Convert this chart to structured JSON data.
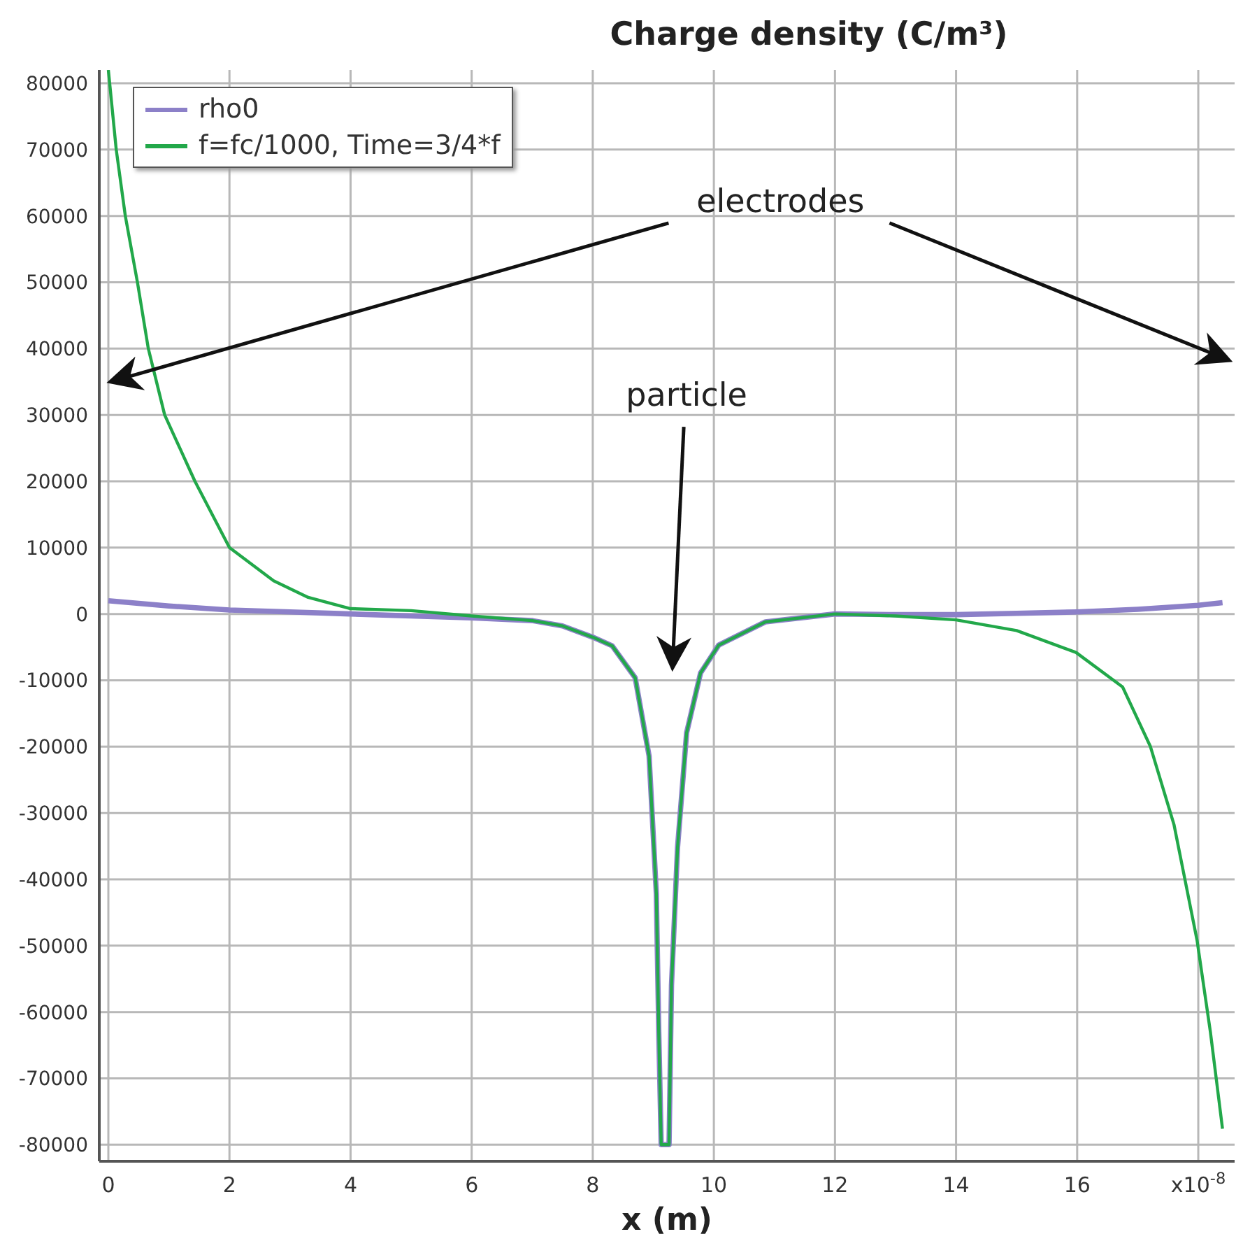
{
  "chart_data": {
    "type": "line",
    "title": "Charge  density (C/m³)",
    "xlabel": "x (m)",
    "annotations": [
      "electrodes",
      "particle"
    ],
    "xlim": [
      -0.15,
      18.6
    ],
    "xticks": [
      0,
      2,
      4,
      6,
      8,
      10,
      12,
      14,
      16,
      {
        "value": 18,
        "label": "x10$^{-8}$"
      }
    ],
    "ylim": [
      -82500,
      82000
    ],
    "yticks": [
      -80000,
      -70000,
      -60000,
      -50000,
      -40000,
      -30000,
      -20000,
      -10000,
      0,
      10000,
      20000,
      30000,
      40000,
      50000,
      60000,
      70000,
      80000
    ],
    "grid": true,
    "legend": "top left",
    "marker": "none",
    "line_style": "solid",
    "series": [
      {
        "name": "rho0",
        "color": "#8c80c8",
        "x": [
          0,
          1,
          2,
          3,
          4,
          5,
          6,
          7,
          7.5,
          8,
          8.32,
          8.7,
          8.93,
          9.05,
          9.09,
          9.13,
          9.26,
          9.3,
          9.4,
          9.55,
          9.78,
          10.08,
          10.85,
          12,
          13,
          14,
          15,
          16,
          17,
          18,
          18.4
        ],
        "values": [
          2000,
          1200,
          600,
          300,
          0,
          -300,
          -600,
          -1000,
          -1800,
          -3500,
          -4800,
          -9600,
          -21400,
          -42200,
          -63000,
          -80000,
          -80000,
          -56000,
          -35200,
          -17900,
          -8900,
          -4700,
          -1200,
          0,
          -100,
          -100,
          100,
          300,
          700,
          1300,
          1700
        ]
      },
      {
        "name": "f=fc/1000, Time=3/4*f",
        "color": "#22a84a",
        "x": [
          0,
          0.13,
          0.28,
          0.48,
          0.66,
          0.93,
          1.43,
          2,
          2.73,
          3.3,
          4,
          5,
          6,
          7,
          7.5,
          8,
          8.32,
          8.7,
          8.93,
          9.05,
          9.09,
          9.13,
          9.26,
          9.3,
          9.4,
          9.55,
          9.78,
          10.08,
          10.85,
          12,
          13,
          14,
          15,
          15.98,
          16.75,
          17.21,
          17.6,
          17.98,
          18.2,
          18.4
        ],
        "values": [
          82000,
          70000,
          60000,
          50000,
          40000,
          30000,
          20000,
          10000,
          5000,
          2500,
          800,
          500,
          -300,
          -1000,
          -1800,
          -3500,
          -4800,
          -9600,
          -21400,
          -42200,
          -63000,
          -80000,
          -80000,
          -56000,
          -35200,
          -17900,
          -8900,
          -4700,
          -1200,
          0,
          -300,
          -900,
          -2500,
          -5800,
          -11000,
          -20000,
          -31800,
          -49200,
          -63000,
          -77600
        ]
      }
    ]
  }
}
